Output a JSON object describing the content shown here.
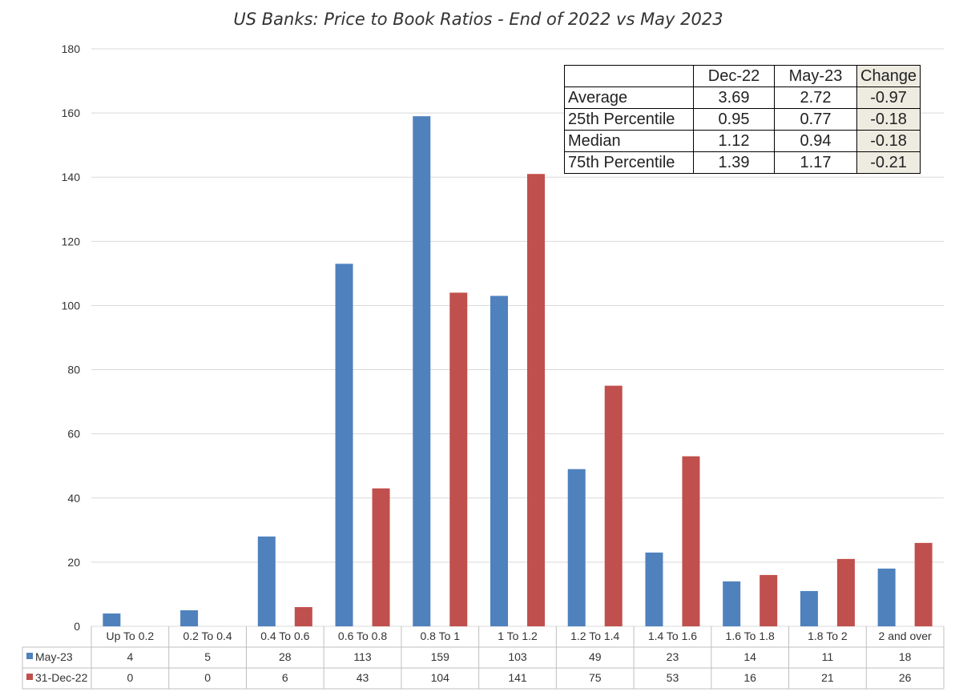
{
  "chart_data": {
    "type": "bar",
    "title": "US Banks: Price to Book Ratios - End of 2022 vs May 2023",
    "xlabel": "",
    "ylabel": "",
    "ylim": [
      0,
      180
    ],
    "yticks": [
      0,
      20,
      40,
      60,
      80,
      100,
      120,
      140,
      160,
      180
    ],
    "grid": true,
    "legend": "data-table-left",
    "categories": [
      "Up To 0.2",
      "0.2 To 0.4",
      "0.4 To 0.6",
      "0.6 To 0.8",
      "0.8 To 1",
      "1 To 1.2",
      "1.2 To 1.4",
      "1.4 To 1.6",
      "1.6 To 1.8",
      "1.8 To 2",
      "2 and over"
    ],
    "series": [
      {
        "name": "May-23",
        "color": "#4f81bd",
        "values": [
          4,
          5,
          28,
          113,
          159,
          103,
          49,
          23,
          14,
          11,
          18
        ]
      },
      {
        "name": "31-Dec-22",
        "color": "#c0504d",
        "values": [
          0,
          0,
          6,
          43,
          104,
          141,
          75,
          53,
          16,
          21,
          26
        ]
      }
    ]
  },
  "stats_table": {
    "headers": [
      "",
      "Dec-22",
      "May-23",
      "Change"
    ],
    "rows": [
      {
        "label": "Average",
        "dec22": "3.69",
        "may23": "2.72",
        "change": "-0.97"
      },
      {
        "label": "25th Percentile",
        "dec22": "0.95",
        "may23": "0.77",
        "change": "-0.18"
      },
      {
        "label": "Median",
        "dec22": "1.12",
        "may23": "0.94",
        "change": "-0.18"
      },
      {
        "label": "75th Percentile",
        "dec22": "1.39",
        "may23": "1.17",
        "change": "-0.21"
      }
    ],
    "change_fill": "#eeece1"
  }
}
